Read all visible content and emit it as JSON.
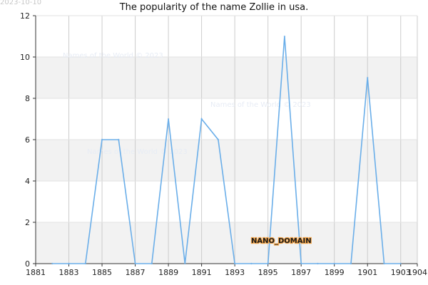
{
  "date_stamp": "2023-10-10",
  "watermark": "Names of the World © 2023",
  "badge": "NANO_DOMAIN",
  "colors": {
    "line": "#6aaee9",
    "band": "#f2f2f2",
    "grid": "#cccccc",
    "axis": "#333333"
  },
  "chart_data": {
    "type": "line",
    "title": "The popularity of the name Zollie in usa.",
    "xlabel": "",
    "ylabel": "",
    "xlim": [
      1881,
      1904
    ],
    "ylim": [
      0,
      12
    ],
    "x_ticks": [
      1881,
      1883,
      1885,
      1887,
      1889,
      1891,
      1893,
      1895,
      1897,
      1899,
      1901,
      1903,
      1904
    ],
    "y_ticks": [
      0,
      2,
      4,
      6,
      8,
      10,
      12
    ],
    "grid": true,
    "series": [
      {
        "x": [
          1882,
          1883,
          1884,
          1885,
          1886,
          1887,
          1888,
          1889,
          1890,
          1891,
          1892,
          1893,
          1894,
          1895,
          1896,
          1897,
          1898,
          1899,
          1900,
          1901,
          1902,
          1903
        ],
        "values": [
          0,
          0,
          0,
          6,
          6,
          0,
          0,
          7,
          0,
          7,
          6,
          0,
          0,
          0,
          11,
          0,
          0,
          0,
          0,
          9,
          0,
          0
        ]
      }
    ]
  }
}
